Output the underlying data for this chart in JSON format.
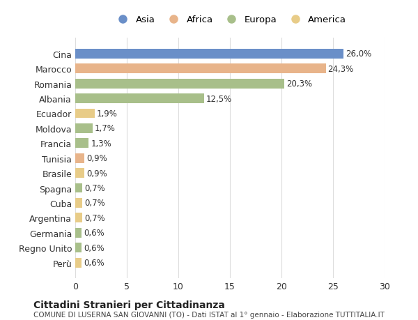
{
  "countries": [
    "Cina",
    "Marocco",
    "Romania",
    "Albania",
    "Ecuador",
    "Moldova",
    "Francia",
    "Tunisia",
    "Brasile",
    "Spagna",
    "Cuba",
    "Argentina",
    "Germania",
    "Regno Unito",
    "Perù"
  ],
  "values": [
    26.0,
    24.3,
    20.3,
    12.5,
    1.9,
    1.7,
    1.3,
    0.9,
    0.9,
    0.7,
    0.7,
    0.7,
    0.6,
    0.6,
    0.6
  ],
  "labels": [
    "26,0%",
    "24,3%",
    "20,3%",
    "12,5%",
    "1,9%",
    "1,7%",
    "1,3%",
    "0,9%",
    "0,9%",
    "0,7%",
    "0,7%",
    "0,7%",
    "0,6%",
    "0,6%",
    "0,6%"
  ],
  "colors": [
    "#6a8fc8",
    "#e8b48a",
    "#a8bf8a",
    "#a8bf8a",
    "#e8cc88",
    "#a8bf8a",
    "#a8bf8a",
    "#e8b48a",
    "#e8cc88",
    "#a8bf8a",
    "#e8cc88",
    "#e8cc88",
    "#a8bf8a",
    "#a8bf8a",
    "#e8cc88"
  ],
  "legend_labels": [
    "Asia",
    "Africa",
    "Europa",
    "America"
  ],
  "legend_colors": [
    "#6a8fc8",
    "#e8b48a",
    "#a8bf8a",
    "#e8cc88"
  ],
  "title": "Cittadini Stranieri per Cittadinanza",
  "subtitle": "COMUNE DI LUSERNA SAN GIOVANNI (TO) - Dati ISTAT al 1° gennaio - Elaborazione TUTTITALIA.IT",
  "xlim": [
    0,
    30
  ],
  "xticks": [
    0,
    5,
    10,
    15,
    20,
    25,
    30
  ],
  "bg_color": "#ffffff",
  "grid_color": "#dddddd"
}
